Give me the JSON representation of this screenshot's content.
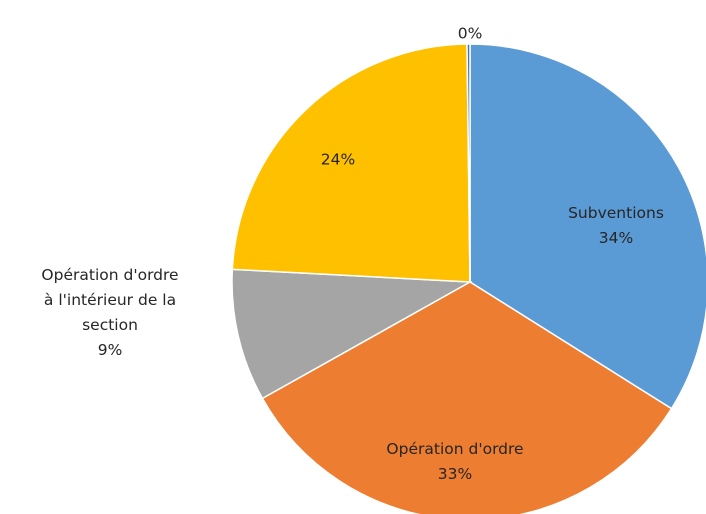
{
  "chart_data": {
    "type": "pie",
    "title": "",
    "slices": [
      {
        "name": "Subventions",
        "value": 34,
        "label_lines": [
          "Subventions",
          "34%"
        ],
        "color": "#5B9BD5"
      },
      {
        "name": "Opération d'ordre",
        "value": 33,
        "label_lines": [
          "Opération d'ordre",
          "33%"
        ],
        "color": "#ED7D31"
      },
      {
        "name": "Opération d'ordre à l'intérieur de la section",
        "value": 9,
        "label_lines": [
          "Opération d'ordre",
          "à l'intérieur de la",
          "section",
          "9%"
        ],
        "color": "#A5A5A5"
      },
      {
        "name": "",
        "value": 24,
        "label_lines": [
          "24%"
        ],
        "color": "#FFC000"
      },
      {
        "name": "",
        "value": 0.2,
        "label_lines": [
          "0%"
        ],
        "color": "#4472C4"
      }
    ],
    "start_angle_deg": 0,
    "direction": "clockwise",
    "legend": "none"
  }
}
